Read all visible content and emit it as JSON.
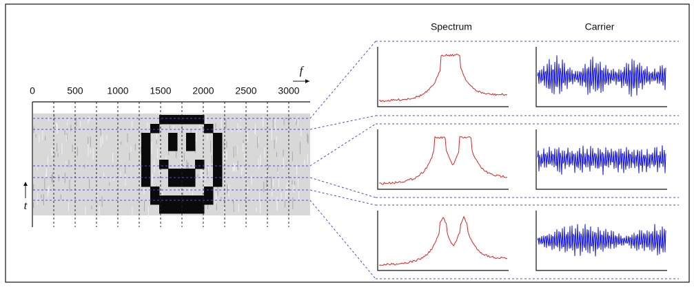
{
  "header": {
    "columns": [
      "Spectrum",
      "Carrier"
    ]
  },
  "spectrogram": {
    "freq_axis_label": "f",
    "time_axis_label": "t",
    "freq_ticks": [
      "0",
      "500",
      "1000",
      "1500",
      "2000",
      "2500",
      "3000"
    ]
  }
}
